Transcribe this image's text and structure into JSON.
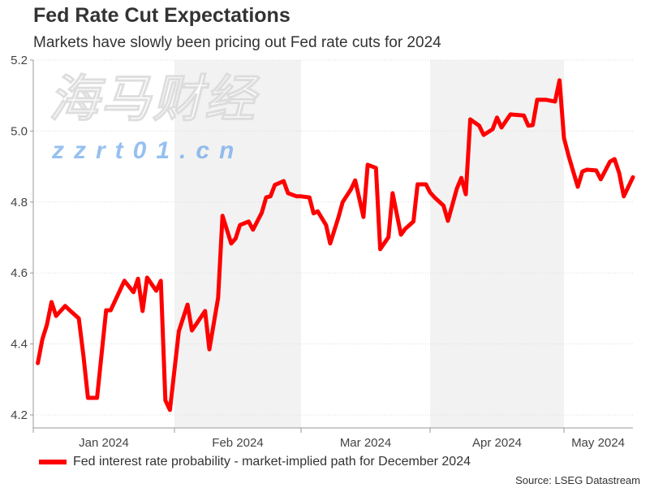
{
  "title": "Fed Rate Cut Expectations",
  "subtitle": "Markets have slowly been pricing out Fed rate cuts for 2024",
  "source": "Source: LSEG Datastream",
  "watermark": {
    "logo_text": "海马财经",
    "url_text": "zzrt01.cn"
  },
  "colors": {
    "line": "#ff0000",
    "shade": "#f2f2f2",
    "grid": "#dddddd",
    "axis": "#999999",
    "text": "#333333"
  },
  "chart_data": {
    "type": "line",
    "title": "Fed Rate Cut Expectations",
    "subtitle": "Markets have slowly been pricing out Fed rate cuts for 2024",
    "xlabel": "",
    "ylabel": "",
    "xlim": [
      "2024-01-01",
      "2024-05-16"
    ],
    "ylim": [
      4.2,
      5.2
    ],
    "yticks": [
      "4.2",
      "4.4",
      "4.6",
      "4.8",
      "5.0",
      "5.2"
    ],
    "xticks": [
      {
        "label": "Jan 2024",
        "start": "2024-01-01",
        "end": "2024-02-01"
      },
      {
        "label": "Feb 2024",
        "start": "2024-02-01",
        "end": "2024-03-01"
      },
      {
        "label": "Mar 2024",
        "start": "2024-03-01",
        "end": "2024-04-01"
      },
      {
        "label": "Apr 2024",
        "start": "2024-04-01",
        "end": "2024-05-01"
      },
      {
        "label": "May 2024",
        "start": "2024-05-01",
        "end": "2024-05-16"
      }
    ],
    "shaded_months": [
      "Feb 2024",
      "Apr 2024"
    ],
    "grid": "horizontal dotted",
    "legend_position": "bottom-left",
    "series": [
      {
        "name": "Fed interest rate probability - market-implied path for December 2024",
        "color": "#ff0000",
        "points": [
          [
            "2024-01-02",
            4.346
          ],
          [
            "2024-01-03",
            4.413
          ],
          [
            "2024-01-04",
            4.454
          ],
          [
            "2024-01-05",
            4.518
          ],
          [
            "2024-01-06",
            4.479
          ],
          [
            "2024-01-08",
            4.507
          ],
          [
            "2024-01-09",
            4.495
          ],
          [
            "2024-01-11",
            4.472
          ],
          [
            "2024-01-12",
            4.369
          ],
          [
            "2024-01-13",
            4.248
          ],
          [
            "2024-01-15",
            4.248
          ],
          [
            "2024-01-17",
            4.495
          ],
          [
            "2024-01-18",
            4.495
          ],
          [
            "2024-01-21",
            4.578
          ],
          [
            "2024-01-23",
            4.546
          ],
          [
            "2024-01-24",
            4.584
          ],
          [
            "2024-01-25",
            4.493
          ],
          [
            "2024-01-26",
            4.587
          ],
          [
            "2024-01-28",
            4.55
          ],
          [
            "2024-01-29",
            4.578
          ],
          [
            "2024-01-30",
            4.241
          ],
          [
            "2024-01-31",
            4.214
          ],
          [
            "2024-02-02",
            4.436
          ],
          [
            "2024-02-04",
            4.511
          ],
          [
            "2024-02-05",
            4.438
          ],
          [
            "2024-02-06",
            4.456
          ],
          [
            "2024-02-08",
            4.493
          ],
          [
            "2024-02-09",
            4.385
          ],
          [
            "2024-02-11",
            4.53
          ],
          [
            "2024-02-12",
            4.761
          ],
          [
            "2024-02-14",
            4.683
          ],
          [
            "2024-02-15",
            4.697
          ],
          [
            "2024-02-16",
            4.735
          ],
          [
            "2024-02-18",
            4.745
          ],
          [
            "2024-02-19",
            4.722
          ],
          [
            "2024-02-21",
            4.77
          ],
          [
            "2024-02-22",
            4.813
          ],
          [
            "2024-02-23",
            4.816
          ],
          [
            "2024-02-24",
            4.848
          ],
          [
            "2024-02-26",
            4.859
          ],
          [
            "2024-02-27",
            4.825
          ],
          [
            "2024-02-29",
            4.816
          ],
          [
            "2024-03-01",
            4.816
          ],
          [
            "2024-03-03",
            4.813
          ],
          [
            "2024-03-04",
            4.768
          ],
          [
            "2024-03-05",
            4.774
          ],
          [
            "2024-03-07",
            4.735
          ],
          [
            "2024-03-08",
            4.683
          ],
          [
            "2024-03-10",
            4.758
          ],
          [
            "2024-03-11",
            4.8
          ],
          [
            "2024-03-13",
            4.836
          ],
          [
            "2024-03-14",
            4.861
          ],
          [
            "2024-03-16",
            4.758
          ],
          [
            "2024-03-17",
            4.905
          ],
          [
            "2024-03-19",
            4.896
          ],
          [
            "2024-03-20",
            4.667
          ],
          [
            "2024-03-22",
            4.701
          ],
          [
            "2024-03-23",
            4.825
          ],
          [
            "2024-03-25",
            4.708
          ],
          [
            "2024-03-26",
            4.724
          ],
          [
            "2024-03-28",
            4.745
          ],
          [
            "2024-03-29",
            4.85
          ],
          [
            "2024-03-31",
            4.85
          ],
          [
            "2024-04-01",
            4.827
          ],
          [
            "2024-04-02",
            4.813
          ],
          [
            "2024-04-04",
            4.79
          ],
          [
            "2024-04-05",
            4.747
          ],
          [
            "2024-04-07",
            4.838
          ],
          [
            "2024-04-08",
            4.868
          ],
          [
            "2024-04-09",
            4.822
          ],
          [
            "2024-04-10",
            5.033
          ],
          [
            "2024-04-12",
            5.015
          ],
          [
            "2024-04-13",
            4.989
          ],
          [
            "2024-04-15",
            5.005
          ],
          [
            "2024-04-16",
            5.038
          ],
          [
            "2024-04-17",
            5.01
          ],
          [
            "2024-04-19",
            5.047
          ],
          [
            "2024-04-22",
            5.044
          ],
          [
            "2024-04-23",
            5.015
          ],
          [
            "2024-04-24",
            5.017
          ],
          [
            "2024-04-25",
            5.088
          ],
          [
            "2024-04-27",
            5.088
          ],
          [
            "2024-04-29",
            5.083
          ],
          [
            "2024-04-30",
            5.143
          ],
          [
            "2024-05-01",
            4.98
          ],
          [
            "2024-05-02",
            4.93
          ],
          [
            "2024-05-04",
            4.843
          ],
          [
            "2024-05-05",
            4.886
          ],
          [
            "2024-05-06",
            4.891
          ],
          [
            "2024-05-08",
            4.889
          ],
          [
            "2024-05-09",
            4.864
          ],
          [
            "2024-05-11",
            4.914
          ],
          [
            "2024-05-12",
            4.921
          ],
          [
            "2024-05-13",
            4.882
          ],
          [
            "2024-05-14",
            4.816
          ],
          [
            "2024-05-16",
            4.87
          ]
        ]
      }
    ]
  }
}
